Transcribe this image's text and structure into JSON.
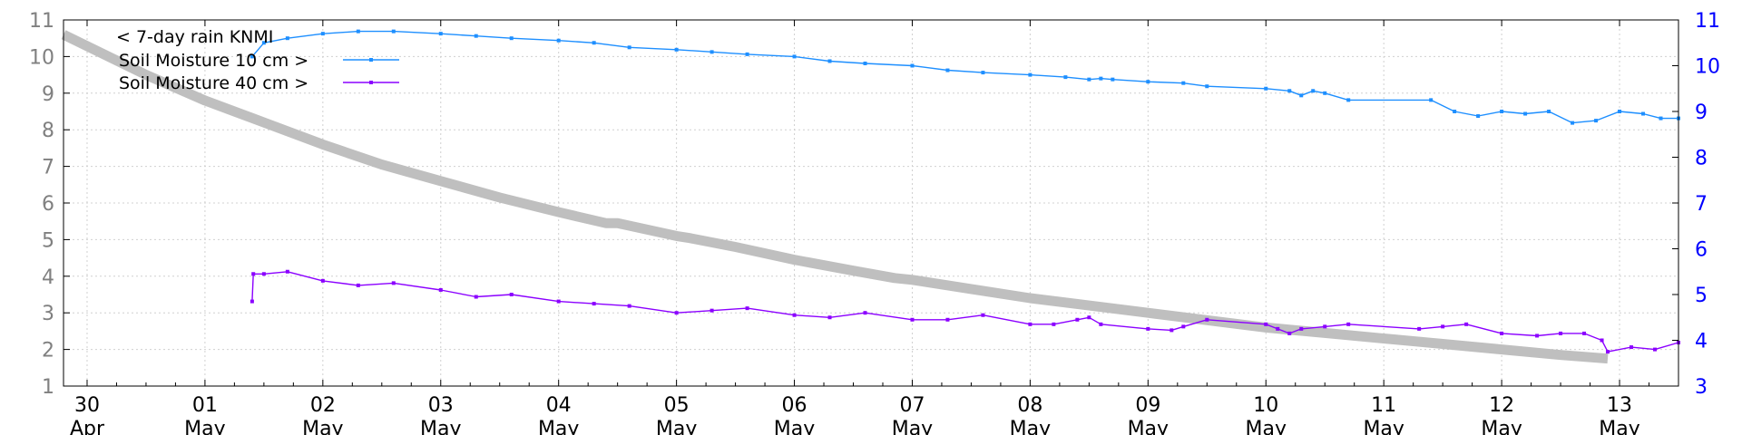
{
  "chart_data": {
    "type": "line",
    "title": "",
    "xlabel": "",
    "ylabel": "",
    "grid": true,
    "legend_position": "top-left",
    "x_range_days": [
      -0.2,
      13.5
    ],
    "x_ticks": [
      {
        "day": 0,
        "line1": "30",
        "line2": "Apr"
      },
      {
        "day": 1,
        "line1": "01",
        "line2": "May"
      },
      {
        "day": 2,
        "line1": "02",
        "line2": "May"
      },
      {
        "day": 3,
        "line1": "03",
        "line2": "May"
      },
      {
        "day": 4,
        "line1": "04",
        "line2": "May"
      },
      {
        "day": 5,
        "line1": "05",
        "line2": "May"
      },
      {
        "day": 6,
        "line1": "06",
        "line2": "May"
      },
      {
        "day": 7,
        "line1": "07",
        "line2": "May"
      },
      {
        "day": 8,
        "line1": "08",
        "line2": "May"
      },
      {
        "day": 9,
        "line1": "09",
        "line2": "May"
      },
      {
        "day": 10,
        "line1": "10",
        "line2": "May"
      },
      {
        "day": 11,
        "line1": "11",
        "line2": "May"
      },
      {
        "day": 12,
        "line1": "12",
        "line2": "May"
      },
      {
        "day": 13,
        "line1": "13",
        "line2": "May"
      }
    ],
    "y_left": {
      "min": 1,
      "max": 11,
      "ticks": [
        1,
        2,
        3,
        4,
        5,
        6,
        7,
        8,
        9,
        10,
        11
      ],
      "color": "#808080"
    },
    "y_right": {
      "min": 3,
      "max": 11,
      "ticks": [
        3,
        4,
        5,
        6,
        7,
        8,
        9,
        10,
        11
      ],
      "color": "#0000ff"
    },
    "series": [
      {
        "name": "< 7-day rain KNMI",
        "axis": "left",
        "color": "#bfbfbf",
        "style": "thick-line",
        "points": [
          [
            -0.2,
            10.6
          ],
          [
            0.5,
            9.5
          ],
          [
            1,
            8.8
          ],
          [
            1.5,
            8.2
          ],
          [
            2,
            7.6
          ],
          [
            2.5,
            7.05
          ],
          [
            3,
            6.6
          ],
          [
            3.5,
            6.15
          ],
          [
            4,
            5.75
          ],
          [
            4.4,
            5.45
          ],
          [
            4.5,
            5.45
          ],
          [
            5,
            5.1
          ],
          [
            5.1,
            5.05
          ],
          [
            5.5,
            4.8
          ],
          [
            6,
            4.45
          ],
          [
            6.5,
            4.15
          ],
          [
            6.85,
            3.95
          ],
          [
            7,
            3.9
          ],
          [
            7.5,
            3.65
          ],
          [
            8,
            3.4
          ],
          [
            8.5,
            3.2
          ],
          [
            9,
            3.0
          ],
          [
            9.5,
            2.8
          ],
          [
            10,
            2.6
          ],
          [
            10.5,
            2.45
          ],
          [
            11,
            2.3
          ],
          [
            11.5,
            2.15
          ],
          [
            12,
            2.0
          ],
          [
            12.5,
            1.85
          ],
          [
            12.9,
            1.75
          ]
        ]
      },
      {
        "name": "Soil Moisture 10 cm >",
        "axis": "right",
        "color": "#1e8fff",
        "style": "line-points",
        "points": [
          [
            1.4,
            10.2
          ],
          [
            1.5,
            10.5
          ],
          [
            1.7,
            10.6
          ],
          [
            2.0,
            10.7
          ],
          [
            2.3,
            10.75
          ],
          [
            2.6,
            10.75
          ],
          [
            3.0,
            10.7
          ],
          [
            3.3,
            10.65
          ],
          [
            3.6,
            10.6
          ],
          [
            4.0,
            10.55
          ],
          [
            4.3,
            10.5
          ],
          [
            4.6,
            10.4
          ],
          [
            5.0,
            10.35
          ],
          [
            5.3,
            10.3
          ],
          [
            5.6,
            10.25
          ],
          [
            6.0,
            10.2
          ],
          [
            6.3,
            10.1
          ],
          [
            6.6,
            10.05
          ],
          [
            7.0,
            10.0
          ],
          [
            7.3,
            9.9
          ],
          [
            7.6,
            9.85
          ],
          [
            8.0,
            9.8
          ],
          [
            8.3,
            9.75
          ],
          [
            8.5,
            9.7
          ],
          [
            8.6,
            9.72
          ],
          [
            8.7,
            9.7
          ],
          [
            9.0,
            9.65
          ],
          [
            9.3,
            9.62
          ],
          [
            9.5,
            9.55
          ],
          [
            10.0,
            9.5
          ],
          [
            10.2,
            9.45
          ],
          [
            10.3,
            9.35
          ],
          [
            10.4,
            9.45
          ],
          [
            10.5,
            9.4
          ],
          [
            10.7,
            9.25
          ],
          [
            11.4,
            9.25
          ],
          [
            11.6,
            9.0
          ],
          [
            11.8,
            8.9
          ],
          [
            12.0,
            9.0
          ],
          [
            12.2,
            8.95
          ],
          [
            12.4,
            9.0
          ],
          [
            12.6,
            8.75
          ],
          [
            12.8,
            8.8
          ],
          [
            13.0,
            9.0
          ],
          [
            13.2,
            8.95
          ],
          [
            13.35,
            8.85
          ],
          [
            13.5,
            8.85
          ]
        ]
      },
      {
        "name": "Soil Moisture 40 cm >",
        "axis": "right",
        "color": "#8b00ff",
        "style": "line-points",
        "points": [
          [
            1.4,
            4.85
          ],
          [
            1.41,
            5.45
          ],
          [
            1.5,
            5.45
          ],
          [
            1.7,
            5.5
          ],
          [
            2.0,
            5.3
          ],
          [
            2.3,
            5.2
          ],
          [
            2.6,
            5.25
          ],
          [
            3.0,
            5.1
          ],
          [
            3.3,
            4.95
          ],
          [
            3.6,
            5.0
          ],
          [
            4.0,
            4.85
          ],
          [
            4.3,
            4.8
          ],
          [
            4.6,
            4.75
          ],
          [
            5.0,
            4.6
          ],
          [
            5.3,
            4.65
          ],
          [
            5.6,
            4.7
          ],
          [
            6.0,
            4.55
          ],
          [
            6.3,
            4.5
          ],
          [
            6.6,
            4.6
          ],
          [
            7.0,
            4.45
          ],
          [
            7.3,
            4.45
          ],
          [
            7.6,
            4.55
          ],
          [
            8.0,
            4.35
          ],
          [
            8.2,
            4.35
          ],
          [
            8.4,
            4.45
          ],
          [
            8.5,
            4.5
          ],
          [
            8.6,
            4.35
          ],
          [
            9.0,
            4.25
          ],
          [
            9.2,
            4.22
          ],
          [
            9.3,
            4.3
          ],
          [
            9.5,
            4.45
          ],
          [
            10.0,
            4.35
          ],
          [
            10.1,
            4.25
          ],
          [
            10.2,
            4.15
          ],
          [
            10.3,
            4.25
          ],
          [
            10.5,
            4.3
          ],
          [
            10.7,
            4.35
          ],
          [
            11.3,
            4.25
          ],
          [
            11.5,
            4.3
          ],
          [
            11.7,
            4.35
          ],
          [
            12.0,
            4.15
          ],
          [
            12.3,
            4.1
          ],
          [
            12.5,
            4.15
          ],
          [
            12.7,
            4.15
          ],
          [
            12.85,
            4.0
          ],
          [
            12.9,
            3.75
          ],
          [
            13.1,
            3.85
          ],
          [
            13.3,
            3.8
          ],
          [
            13.5,
            3.95
          ]
        ]
      }
    ]
  }
}
